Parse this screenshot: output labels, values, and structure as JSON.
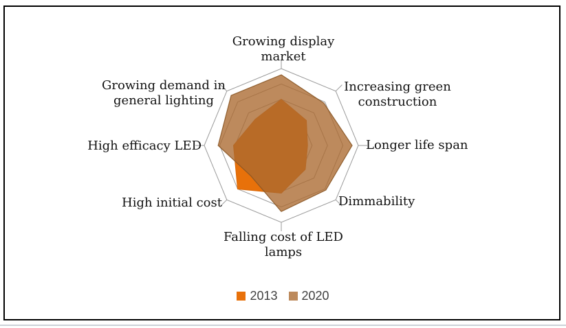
{
  "chart_data": {
    "type": "radar",
    "title": "",
    "categories": [
      "Growing display market",
      "Increasing green construction",
      "Longer life span",
      "Dimmability",
      "Falling cost of LED lamps",
      "High initial cost",
      "High efficacy LED",
      "Growing demand in general lighting"
    ],
    "series": [
      {
        "name": "2013",
        "values": [
          3.0,
          2.3,
          1.7,
          2.2,
          3.1,
          4.0,
          3.1,
          2.4
        ],
        "fill": "#E8710A",
        "stroke": "#DD6A08"
      },
      {
        "name": "2020",
        "values": [
          4.6,
          3.9,
          4.6,
          4.1,
          4.3,
          2.8,
          4.1,
          4.6
        ],
        "fill": "rgba(170,105,47,0.78)",
        "stroke": "rgba(136,85,36,0.9)"
      }
    ],
    "rmax": 5,
    "grid_interval": 1,
    "gridlines": true,
    "grid_color": "#9a9a9a",
    "legend_position": "bottom"
  },
  "axis_labels": [
    {
      "lines": [
        "Growing display",
        "market"
      ]
    },
    {
      "lines": [
        "Increasing green",
        "construction"
      ]
    },
    {
      "lines": [
        "Longer life span"
      ]
    },
    {
      "lines": [
        "Dimmability"
      ]
    },
    {
      "lines": [
        "Falling cost of LED",
        "lamps"
      ]
    },
    {
      "lines": [
        "High initial cost"
      ]
    },
    {
      "lines": [
        "High efficacy LED"
      ]
    },
    {
      "lines": [
        "Growing demand in",
        "general lighting"
      ]
    }
  ],
  "legend": {
    "items": [
      {
        "label": "2013",
        "color": "#E8710A"
      },
      {
        "label": "2020",
        "color": "#BD8A5C"
      }
    ]
  }
}
